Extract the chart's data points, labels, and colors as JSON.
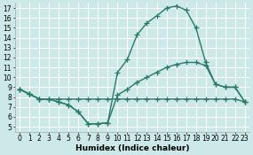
{
  "bg_color": "#cde8e8",
  "grid_color": "#ffffff",
  "line_color": "#2a7a6a",
  "line_width": 1.0,
  "marker": "+",
  "marker_size": 4,
  "marker_edge_width": 0.9,
  "xlabel": "Humidex (Indice chaleur)",
  "xlabel_fontsize": 6.5,
  "tick_fontsize": 5.5,
  "xlim": [
    -0.5,
    23.5
  ],
  "ylim": [
    4.5,
    17.5
  ],
  "xticks": [
    0,
    1,
    2,
    3,
    4,
    5,
    6,
    7,
    8,
    9,
    10,
    11,
    12,
    13,
    14,
    15,
    16,
    17,
    18,
    19,
    20,
    21,
    22,
    23
  ],
  "yticks": [
    5,
    6,
    7,
    8,
    9,
    10,
    11,
    12,
    13,
    14,
    15,
    16,
    17
  ],
  "line1_x": [
    0,
    1,
    2,
    3,
    4,
    5,
    6,
    7,
    8,
    9,
    10,
    11,
    12,
    13,
    14,
    15,
    16,
    17,
    18,
    19,
    20,
    21,
    22,
    23
  ],
  "line1_y": [
    8.8,
    8.3,
    7.8,
    7.8,
    7.5,
    7.2,
    6.5,
    5.3,
    5.3,
    5.4,
    10.5,
    11.8,
    14.3,
    15.5,
    16.2,
    17.0,
    17.2,
    16.8,
    15.0,
    11.5,
    9.3,
    9.0,
    9.0,
    7.5
  ],
  "line2_x": [
    0,
    1,
    2,
    3,
    4,
    5,
    6,
    7,
    8,
    9,
    10,
    11,
    12,
    13,
    14,
    15,
    16,
    17,
    18,
    19,
    20,
    21,
    22,
    23
  ],
  "line2_y": [
    8.8,
    8.3,
    7.8,
    7.8,
    7.5,
    7.2,
    6.5,
    5.3,
    5.3,
    5.4,
    8.2,
    8.8,
    9.5,
    10.0,
    10.5,
    11.0,
    11.3,
    11.5,
    11.5,
    11.2,
    9.3,
    9.0,
    9.0,
    7.5
  ],
  "line3_x": [
    0,
    1,
    2,
    3,
    4,
    5,
    6,
    7,
    8,
    9,
    10,
    11,
    12,
    13,
    14,
    15,
    16,
    17,
    18,
    19,
    20,
    21,
    22,
    23
  ],
  "line3_y": [
    8.8,
    8.3,
    7.8,
    7.8,
    7.8,
    7.8,
    7.8,
    7.8,
    7.8,
    7.8,
    7.8,
    7.8,
    7.8,
    7.8,
    7.8,
    7.8,
    7.8,
    7.8,
    7.8,
    7.8,
    7.8,
    7.8,
    7.8,
    7.5
  ]
}
